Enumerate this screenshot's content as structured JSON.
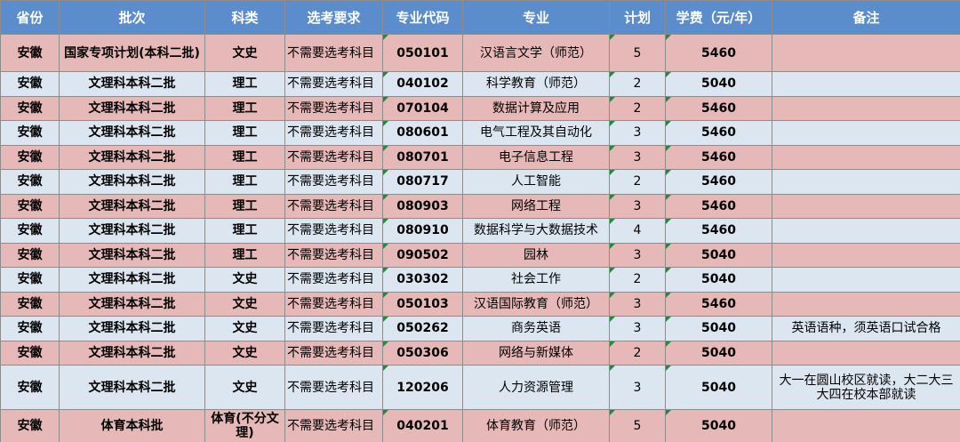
{
  "table": {
    "header": [
      "省份",
      "批次",
      "科类",
      "选考要求",
      "专业代码",
      "专业",
      "计划",
      "学费（元/年）",
      "备注"
    ],
    "rows": [
      {
        "province": "安徽",
        "batch": "国家专项计划(本科二批)",
        "subject": "文史",
        "requirement": "不需要选考科目",
        "code": "050101",
        "major": "汉语言文学（师范）",
        "plan": 5,
        "fee": 5460
      },
      {
        "province": "安徽",
        "batch": "文理科本科二批",
        "subject": "理工",
        "requirement": "不需要选考科目",
        "code": "040102",
        "major": "科学教育（师范）",
        "plan": 2,
        "fee": 5040
      },
      {
        "province": "安徽",
        "batch": "文理科本科二批",
        "subject": "理工",
        "requirement": "不需要选考科目",
        "code": "070104",
        "major": "数据计算及应用",
        "plan": 2,
        "fee": 5460
      },
      {
        "province": "安徽",
        "batch": "文理科本科二批",
        "subject": "理工",
        "requirement": "不需要选考科目",
        "code": "080601",
        "major": "电气工程及其自动化",
        "plan": 3,
        "fee": 5460
      },
      {
        "province": "安徽",
        "batch": "文理科本科二批",
        "subject": "理工",
        "requirement": "不需要选考科目",
        "code": "080701",
        "major": "电子信息工程",
        "plan": 3,
        "fee": 5460
      },
      {
        "province": "安徽",
        "batch": "文理科本科二批",
        "subject": "理工",
        "requirement": "不需要选考科目",
        "code": "080717",
        "major": "人工智能",
        "plan": 2,
        "fee": 5460
      },
      {
        "province": "安徽",
        "batch": "文理科本科二批",
        "subject": "理工",
        "requirement": "不需要选考科目",
        "code": "080903",
        "major": "网络工程",
        "plan": 3,
        "fee": 5460
      },
      {
        "province": "安徽",
        "batch": "文理科本科二批",
        "subject": "理工",
        "requirement": "不需要选考科目",
        "code": "080910",
        "major": "数据科学与大数据技术",
        "plan": 4,
        "fee": 5460
      },
      {
        "province": "安徽",
        "batch": "文理科本科二批",
        "subject": "理工",
        "requirement": "不需要选考科目",
        "code": "090502",
        "major": "园林",
        "plan": 3,
        "fee": 5040
      },
      {
        "province": "安徽",
        "batch": "文理科本科二批",
        "subject": "文史",
        "requirement": "不需要选考科目",
        "code": "030302",
        "major": "社会工作",
        "plan": 2,
        "fee": 5040
      },
      {
        "province": "安徽",
        "batch": "文理科本科二批",
        "subject": "文史",
        "requirement": "不需要选考科目",
        "code": "050103",
        "major": "汉语国际教育（师范）",
        "plan": 3,
        "fee": 5460
      },
      {
        "province": "安徽",
        "batch": "文理科本科二批",
        "subject": "文史",
        "requirement": "不需要选考科目",
        "code": "050262",
        "major": "商务英语",
        "plan": 3,
        "fee": 5040,
        "note": "英语语种，须英语口试合格"
      },
      {
        "province": "安徽",
        "batch": "文理科本科二批",
        "subject": "文史",
        "requirement": "不需要选考科目",
        "code": "050306",
        "major": "网络与新媒体",
        "plan": 2,
        "fee": 5040
      },
      {
        "province": "安徽",
        "batch": "文理科本科二批",
        "subject": "文史",
        "requirement": "不需要选考科目",
        "code": "120206",
        "major": "人力资源管理",
        "plan": 3,
        "fee": 5040,
        "note": "大一在圆山校区就读，大二大三大四在校本部就读"
      },
      {
        "province": "安徽",
        "batch": "体育本科批",
        "subject": "体育(不分文理)",
        "requirement": "不需要选考科目",
        "code": "040201",
        "major": "体育教育（师范）",
        "plan": 5,
        "fee": 5040
      }
    ]
  }
}
